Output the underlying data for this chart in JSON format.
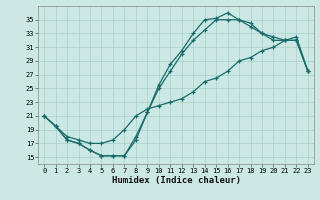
{
  "background_color": "#cce8e5",
  "grid_color": "#aacfcc",
  "line_color": "#1a6b6b",
  "xlim": [
    -0.5,
    23.5
  ],
  "ylim": [
    14,
    37
  ],
  "xticks": [
    0,
    1,
    2,
    3,
    4,
    5,
    6,
    7,
    8,
    9,
    10,
    11,
    12,
    13,
    14,
    15,
    16,
    17,
    18,
    19,
    20,
    21,
    22,
    23
  ],
  "yticks": [
    15,
    17,
    19,
    21,
    23,
    25,
    27,
    29,
    31,
    33,
    35
  ],
  "xlabel": "Humidex (Indice chaleur)",
  "curve1_x": [
    0,
    1,
    2,
    3,
    4,
    5,
    6,
    7,
    8,
    9,
    10,
    11,
    12,
    13,
    14,
    15,
    16,
    17,
    18,
    19,
    20,
    21,
    22,
    23
  ],
  "curve1_y": [
    21,
    19.5,
    17.5,
    17,
    16,
    15.2,
    15.2,
    15.2,
    17.5,
    21.5,
    25,
    27.5,
    30,
    32,
    33.5,
    35,
    35,
    35,
    34,
    33,
    32,
    32,
    32,
    27.5
  ],
  "curve2_x": [
    0,
    1,
    2,
    3,
    4,
    5,
    6,
    7,
    8,
    9,
    10,
    11,
    12,
    13,
    14,
    15,
    16,
    17,
    18,
    19,
    20,
    21,
    22,
    23
  ],
  "curve2_y": [
    21,
    19.5,
    17.5,
    17,
    16,
    15.2,
    15.2,
    15.2,
    18,
    21.5,
    25.5,
    28.5,
    30.5,
    33,
    35,
    35.2,
    36,
    35,
    34.5,
    33,
    32.5,
    32,
    32.5,
    27.5
  ],
  "curve3_x": [
    0,
    1,
    2,
    3,
    4,
    5,
    6,
    7,
    8,
    9,
    10,
    11,
    12,
    13,
    14,
    15,
    16,
    17,
    18,
    19,
    20,
    21,
    22,
    23
  ],
  "curve3_y": [
    21,
    19.5,
    18,
    17.5,
    17,
    17,
    17.5,
    19,
    21,
    22,
    22.5,
    23,
    23.5,
    24.5,
    26,
    26.5,
    27.5,
    29,
    29.5,
    30.5,
    31,
    32,
    32,
    27.5
  ]
}
